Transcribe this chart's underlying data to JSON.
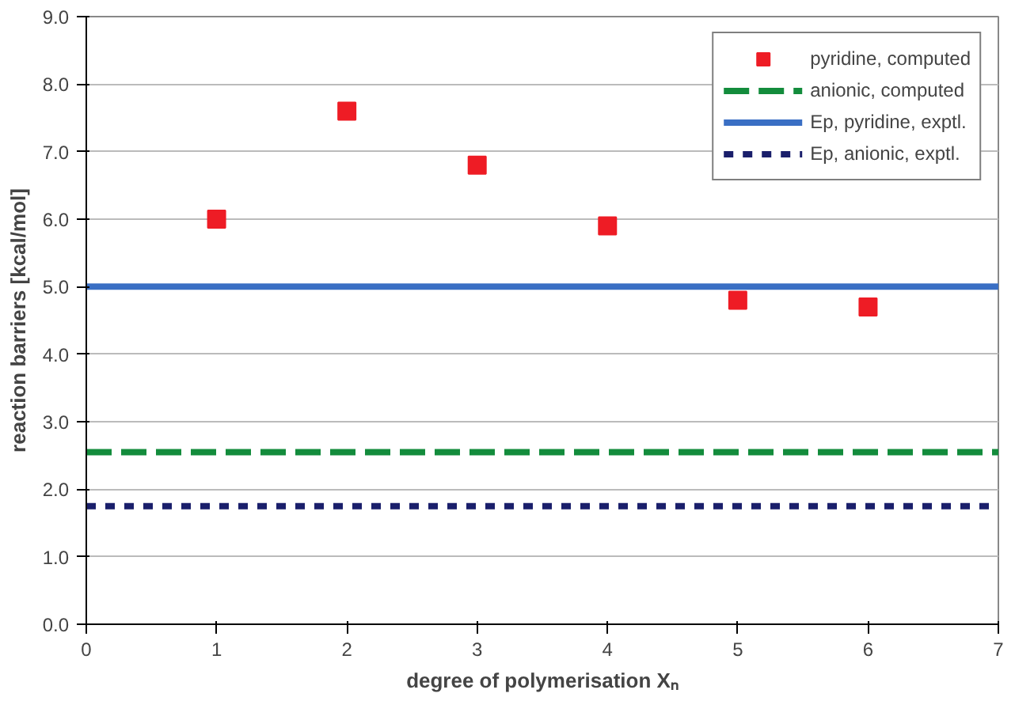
{
  "chart_data": {
    "type": "scatter",
    "xlabel": "degree of polymerisation Xₙ",
    "ylabel": "reaction barriers [kcal/mol]",
    "xlim": [
      0,
      7
    ],
    "xticks": [
      0,
      1,
      2,
      3,
      4,
      5,
      6,
      7
    ],
    "ylim": [
      0,
      9
    ],
    "yticks": [
      {
        "value": 0,
        "label": "0.0"
      },
      {
        "value": 1,
        "label": "1.0"
      },
      {
        "value": 2,
        "label": "2.0"
      },
      {
        "value": 3,
        "label": "3.0"
      },
      {
        "value": 4,
        "label": "4.0"
      },
      {
        "value": 5,
        "label": "5.0"
      },
      {
        "value": 6,
        "label": "6.0"
      },
      {
        "value": 7,
        "label": "7.0"
      },
      {
        "value": 8,
        "label": "8.0"
      },
      {
        "value": 9,
        "label": "9.0"
      }
    ],
    "grid": "y",
    "legend": "top right",
    "series": [
      {
        "name": "pyridine, computed",
        "marker": "square",
        "color": "#ee1c25",
        "x": [
          1,
          2,
          3,
          4,
          5,
          6
        ],
        "values": [
          6.0,
          7.6,
          6.8,
          5.9,
          4.8,
          4.7
        ]
      },
      {
        "name": "anionic, computed",
        "type": "line",
        "line_style": "dashed",
        "color": "#138c3c",
        "x": [
          0,
          7
        ],
        "values": [
          2.55,
          2.55
        ]
      },
      {
        "name": "Ep, pyridine, exptl.",
        "type": "line",
        "line_style": "solid",
        "color": "#3a6fc4",
        "x": [
          0,
          7
        ],
        "values": [
          5.0,
          5.0
        ]
      },
      {
        "name": "Ep, anionic, exptl.",
        "type": "line",
        "line_style": "dotted",
        "color": "#1a1f6b",
        "x": [
          0,
          7
        ],
        "values": [
          1.75,
          1.75
        ]
      }
    ]
  }
}
